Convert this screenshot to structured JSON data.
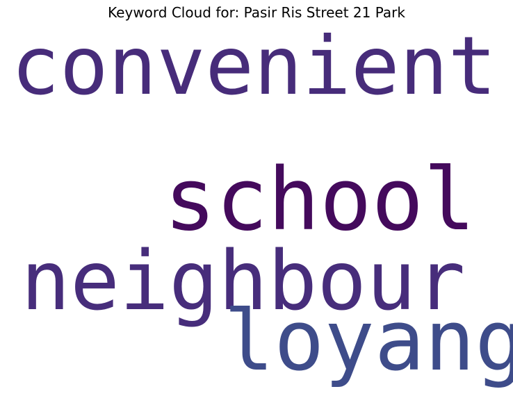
{
  "title": "Keyword Cloud for: Pasir Ris Street 21 Park",
  "words": [
    {
      "text": "convenient",
      "color": "#472c7a"
    },
    {
      "text": "school",
      "color": "#440a5c"
    },
    {
      "text": "neighbour",
      "color": "#472d7b"
    },
    {
      "text": "loyang",
      "color": "#3e4c8a"
    }
  ]
}
